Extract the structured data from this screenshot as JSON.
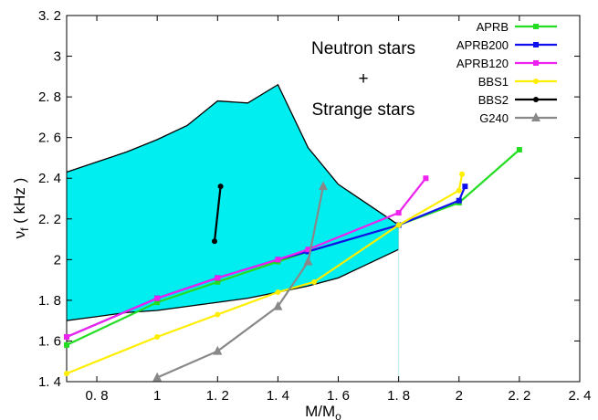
{
  "chart_data": {
    "type": "line",
    "xlabel": "M/M",
    "xlabel_sub": "o",
    "ylabel": "ν",
    "ylabel_sub": "f",
    "ylabel_unit": "( kHz )",
    "xlim": [
      0.7,
      2.4
    ],
    "ylim": [
      1.4,
      3.2
    ],
    "xticks": [
      0.8,
      1.0,
      1.2,
      1.4,
      1.6,
      1.8,
      2.0,
      2.2,
      2.4
    ],
    "xtick_labels": [
      "0. 8",
      "1",
      "1. 2",
      "1. 4",
      "1. 6",
      "1. 8",
      "2",
      "2. 2",
      "2. 4"
    ],
    "yticks": [
      1.4,
      1.6,
      1.8,
      2.0,
      2.2,
      2.4,
      2.6,
      2.8,
      3.0,
      3.2
    ],
    "ytick_labels": [
      "1. 4",
      "1. 6",
      "1. 8",
      "2",
      "2. 2",
      "2. 4",
      "2. 6",
      "2. 8",
      "3",
      "3. 2"
    ],
    "region": {
      "fill_color": "#00eef0",
      "upper": [
        [
          0.7,
          2.43
        ],
        [
          0.8,
          2.48
        ],
        [
          0.9,
          2.53
        ],
        [
          1.0,
          2.59
        ],
        [
          1.1,
          2.66
        ],
        [
          1.2,
          2.78
        ],
        [
          1.3,
          2.77
        ],
        [
          1.4,
          2.86
        ],
        [
          1.5,
          2.55
        ],
        [
          1.6,
          2.37
        ],
        [
          1.8,
          2.17
        ]
      ],
      "lower": [
        [
          0.7,
          1.7
        ],
        [
          0.8,
          1.72
        ],
        [
          0.9,
          1.74
        ],
        [
          1.0,
          1.75
        ],
        [
          1.2,
          1.79
        ],
        [
          1.3,
          1.81
        ],
        [
          1.4,
          1.84
        ],
        [
          1.5,
          1.87
        ],
        [
          1.6,
          1.91
        ],
        [
          1.8,
          2.05
        ]
      ]
    },
    "annotation_lines": [
      "Neutron stars",
      "+",
      "Strange stars"
    ],
    "series": [
      {
        "name": "APRB",
        "color": "#22dd22",
        "marker": "square",
        "x": [
          0.7,
          1.0,
          1.2,
          1.4,
          1.5,
          1.8,
          2.0,
          2.2
        ],
        "y": [
          1.58,
          1.79,
          1.89,
          1.99,
          2.04,
          2.17,
          2.28,
          2.54
        ]
      },
      {
        "name": "APRB200",
        "color": "#1010ee",
        "marker": "square",
        "x": [
          0.7,
          1.0,
          1.2,
          1.4,
          1.5,
          1.8,
          2.0,
          2.02
        ],
        "y": [
          1.62,
          1.81,
          1.91,
          2.0,
          2.04,
          2.17,
          2.29,
          2.36
        ]
      },
      {
        "name": "APRB120",
        "color": "#ee22ee",
        "marker": "square",
        "x": [
          0.7,
          1.0,
          1.2,
          1.4,
          1.5,
          1.8,
          1.89
        ],
        "y": [
          1.62,
          1.81,
          1.91,
          2.0,
          2.05,
          2.23,
          2.4
        ]
      },
      {
        "name": "BBS1",
        "color": "#ffee00",
        "marker": "circle",
        "x": [
          0.7,
          1.0,
          1.2,
          1.4,
          1.52,
          1.8,
          2.0,
          2.01
        ],
        "y": [
          1.44,
          1.62,
          1.73,
          1.84,
          1.89,
          2.17,
          2.34,
          2.42
        ]
      },
      {
        "name": "BBS2",
        "color": "#000000",
        "marker": "circle",
        "x": [
          1.19,
          1.21
        ],
        "y": [
          2.09,
          2.36
        ]
      },
      {
        "name": "G240",
        "color": "#888888",
        "marker": "triangle",
        "x": [
          1.0,
          1.2,
          1.4,
          1.5,
          1.55
        ],
        "y": [
          1.42,
          1.55,
          1.77,
          1.99,
          2.36
        ]
      }
    ],
    "grid": false,
    "legend_position": "top-right"
  }
}
